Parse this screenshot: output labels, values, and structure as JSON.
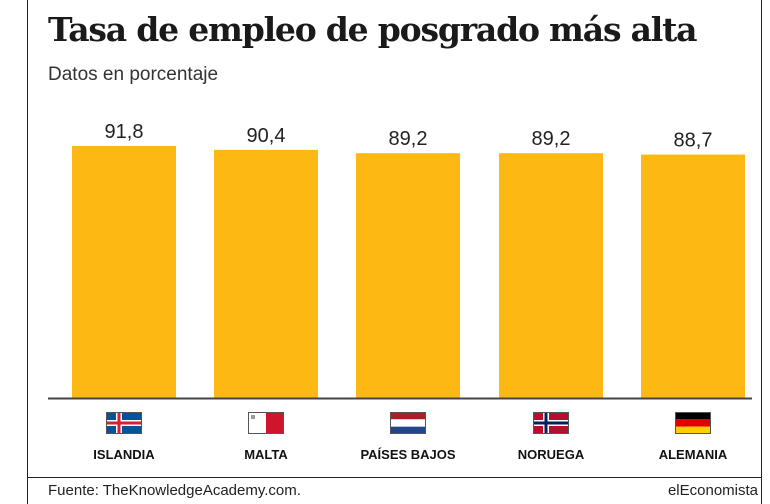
{
  "header": {
    "title": "Tasa de empleo de posgrado más alta",
    "subtitle": "Datos en porcentaje"
  },
  "footer": {
    "source": "Fuente: TheKnowledgeAcademy.com.",
    "brand": "elEconomista"
  },
  "colors": {
    "bar": "#FDB813",
    "axis": "#444444"
  },
  "chart_data": {
    "type": "bar",
    "categories": [
      "ISLANDIA",
      "MALTA",
      "PAÍSES BAJOS",
      "NORUEGA",
      "ALEMANIA"
    ],
    "values": [
      91.8,
      90.4,
      89.2,
      89.2,
      88.7
    ],
    "value_labels": [
      "91,8",
      "90,4",
      "89,2",
      "89,2",
      "88,7"
    ],
    "flags": [
      "iceland-flag",
      "malta-flag",
      "netherlands-flag",
      "norway-flag",
      "germany-flag"
    ],
    "title": "Tasa de empleo de posgrado más alta",
    "subtitle": "Datos en porcentaje",
    "xlabel": "",
    "ylabel": "",
    "grid": false,
    "legend": "none"
  }
}
